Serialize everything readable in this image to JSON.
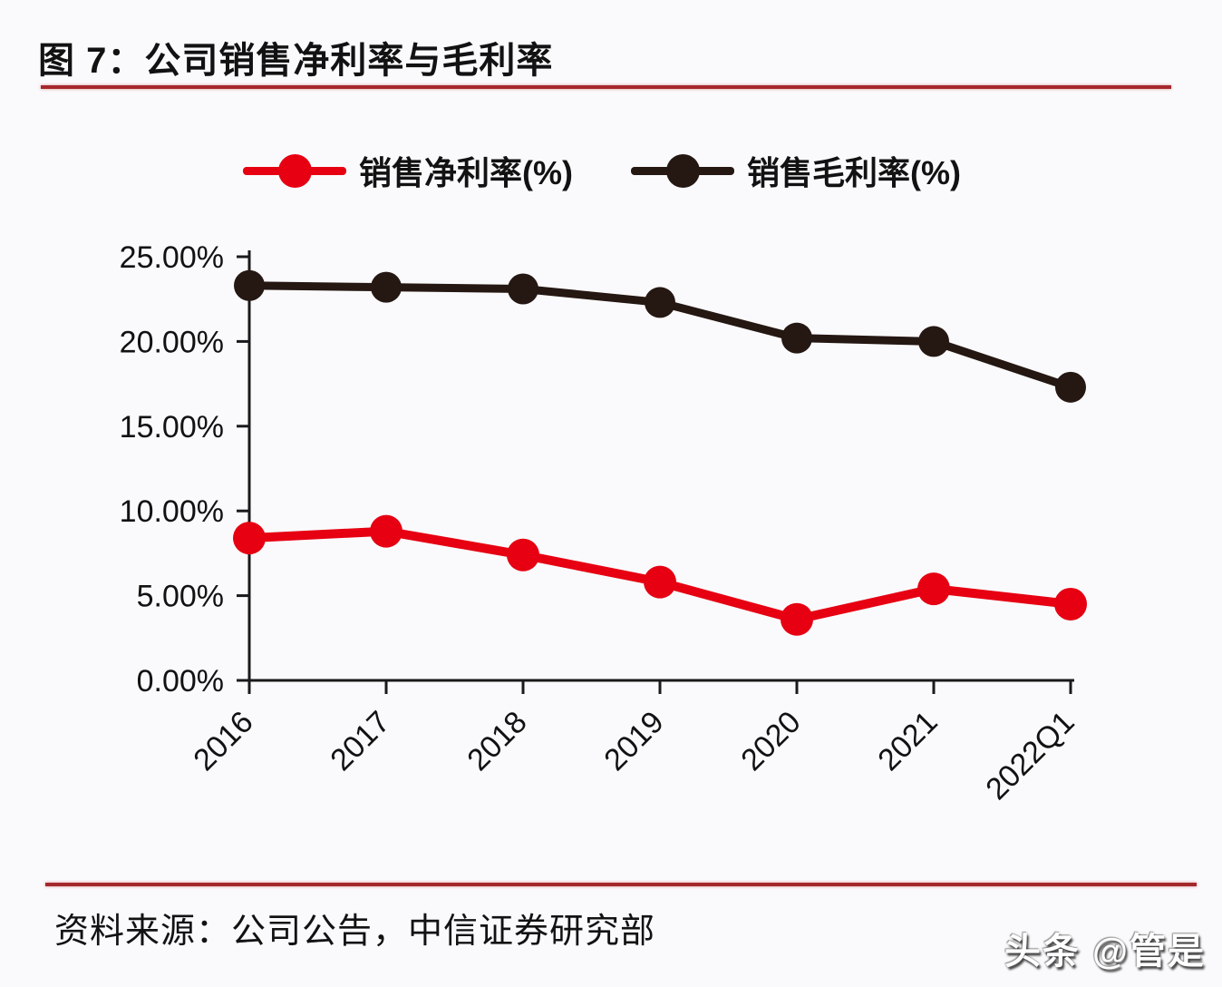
{
  "header": {
    "title": "图 7：公司销售净利率与毛利率"
  },
  "legend": {
    "items": [
      {
        "label": "销售净利率(%)",
        "color": "#e60012"
      },
      {
        "label": "销售毛利率(%)",
        "color": "#251712"
      }
    ]
  },
  "footer": {
    "source": "资料来源：公司公告，中信证券研究部"
  },
  "watermark": {
    "text": "头条 @管是"
  },
  "colors": {
    "accent_rule": "#a5282d",
    "net_series": "#e60012",
    "gross_series": "#251712",
    "axis": "#1a1a1a",
    "text": "#121212"
  },
  "chart_data": {
    "type": "line",
    "title": "公司销售净利率与毛利率",
    "categories": [
      "2016",
      "2017",
      "2018",
      "2019",
      "2020",
      "2021",
      "2022Q1"
    ],
    "series": [
      {
        "name": "销售净利率(%)",
        "color": "#e60012",
        "values": [
          8.4,
          8.8,
          7.4,
          5.8,
          3.6,
          5.4,
          4.5
        ]
      },
      {
        "name": "销售毛利率(%)",
        "color": "#251712",
        "values": [
          23.3,
          23.2,
          23.1,
          22.3,
          20.2,
          20.0,
          17.3
        ]
      }
    ],
    "xlabel": "",
    "ylabel": "",
    "ylim": [
      0,
      25
    ],
    "y_tick_step": 5,
    "y_tick_labels": [
      "0.00%",
      "5.00%",
      "10.00%",
      "15.00%",
      "20.00%",
      "25.00%"
    ],
    "x_tick_rotation_deg": -45,
    "grid": false,
    "legend_position": "top",
    "marker": "circle"
  }
}
